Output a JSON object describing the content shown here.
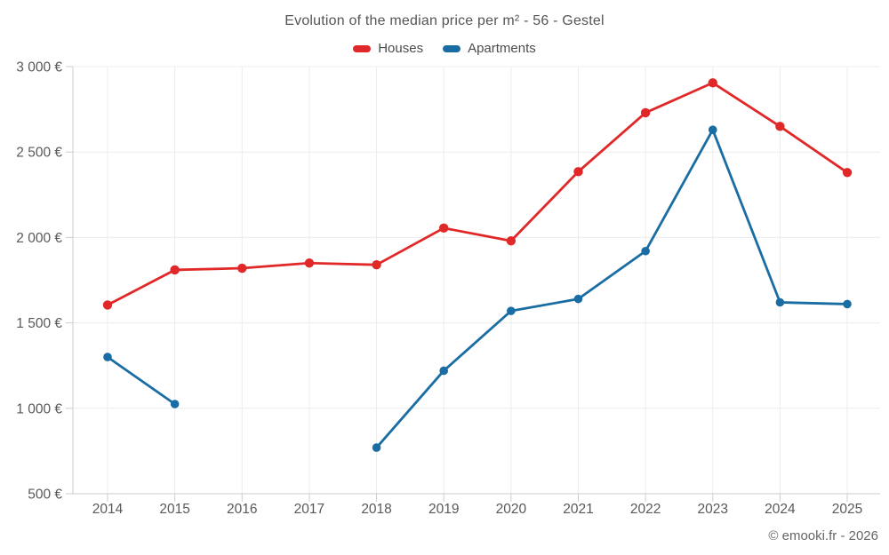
{
  "chart_data": {
    "type": "line",
    "title": "Evolution of the median price per m² - 56 - Gestel",
    "categories": [
      "2014",
      "2015",
      "2016",
      "2017",
      "2018",
      "2019",
      "2020",
      "2021",
      "2022",
      "2023",
      "2024",
      "2025"
    ],
    "series": [
      {
        "name": "Houses",
        "color": "#e12828",
        "values": [
          1605,
          1810,
          1820,
          1850,
          1840,
          2055,
          1980,
          2385,
          2730,
          2905,
          2650,
          2380
        ]
      },
      {
        "name": "Apartments",
        "color": "#1a6da3",
        "values": [
          1300,
          1025,
          null,
          null,
          770,
          1220,
          1570,
          1640,
          1920,
          2630,
          1620,
          1610
        ]
      }
    ],
    "ylim": [
      500,
      3000
    ],
    "ytick_values": [
      500,
      1000,
      1500,
      2000,
      2500,
      3000
    ],
    "ytick_labels": [
      "500 €",
      "1 000 €",
      "1 500 €",
      "2 000 €",
      "2 500 €",
      "3 000 €"
    ],
    "grid": true,
    "legend_position": "top",
    "footer": "© emooki.fr - 2026",
    "colors": {
      "grid": "#ececec",
      "axis": "#cccccc",
      "tick_text": "#595959"
    }
  }
}
